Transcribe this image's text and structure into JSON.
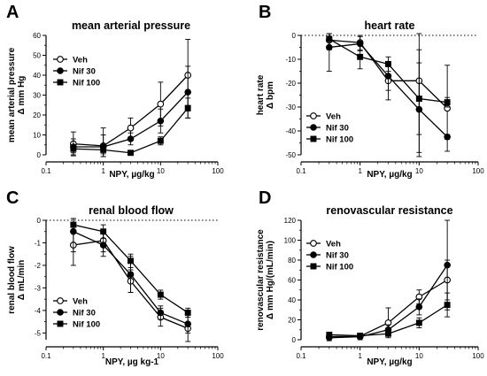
{
  "chart_data": [
    {
      "panel": "A",
      "type": "line",
      "title": "mean arterial pressure",
      "ylabel": [
        "mean arterial pressure",
        "Δ mm Hg"
      ],
      "xlabel": "NPY, µg/kg",
      "xscale": "log",
      "xlim": [
        0.1,
        100
      ],
      "ylim": [
        0,
        60
      ],
      "xticks": [
        0.1,
        1,
        10,
        100
      ],
      "xticklabels": [
        "0.1",
        "1",
        "10",
        "100"
      ],
      "yticks": [
        0,
        10,
        20,
        30,
        40,
        50,
        60
      ],
      "zero_line": false,
      "legend_position": "upper-left",
      "x": [
        0.3,
        1,
        3,
        10,
        30
      ],
      "series": [
        {
          "name": "Veh",
          "marker": "open-circle",
          "values": [
            5.5,
            4.5,
            13.5,
            25.5,
            40
          ],
          "err": [
            6,
            9,
            5,
            11,
            18
          ]
        },
        {
          "name": "Nif 30",
          "marker": "filled-circle",
          "values": [
            4,
            4,
            8,
            17,
            31.5
          ],
          "err": [
            4,
            6,
            3,
            6,
            13
          ]
        },
        {
          "name": "Nif 100",
          "marker": "filled-square",
          "values": [
            3,
            2.5,
            1,
            7,
            23.5
          ],
          "err": [
            2,
            2,
            1,
            2,
            5
          ]
        }
      ]
    },
    {
      "panel": "B",
      "type": "line",
      "title": "heart rate",
      "ylabel": [
        "heart rate",
        "Δ bpm"
      ],
      "xlabel": "NPY, µg/kg",
      "xscale": "log",
      "xlim": [
        0.1,
        100
      ],
      "ylim": [
        -50,
        0
      ],
      "xticks": [
        0.1,
        1,
        10,
        100
      ],
      "xticklabels": [
        "0.1",
        "1",
        "10",
        "100"
      ],
      "yticks": [
        -50,
        -40,
        -30,
        -20,
        -10,
        0
      ],
      "zero_line": true,
      "legend_position": "lower-left",
      "x": [
        0.3,
        1,
        3,
        10,
        30
      ],
      "series": [
        {
          "name": "Veh",
          "marker": "open-circle",
          "values": [
            -2,
            -3,
            -19,
            -19,
            -30.5
          ],
          "err": [
            4,
            3,
            8,
            30,
            18
          ]
        },
        {
          "name": "Nif 30",
          "marker": "filled-circle",
          "values": [
            -5,
            -3.5,
            -17,
            -31,
            -42.5
          ],
          "err": [
            10,
            3,
            6,
            25,
            1
          ]
        },
        {
          "name": "Nif 100",
          "marker": "filled-square",
          "values": [
            -1.5,
            -9,
            -12,
            -26.5,
            -28
          ],
          "err": [
            3,
            5,
            3,
            15,
            2
          ]
        }
      ]
    },
    {
      "panel": "C",
      "type": "line",
      "title": "renal blood flow",
      "ylabel": [
        "renal blood flow",
        "Δ mL/min"
      ],
      "xlabel": "NPY, µg kg-1",
      "xscale": "log",
      "xlim": [
        0.1,
        100
      ],
      "ylim": [
        -5.3,
        0
      ],
      "xticks": [
        0.1,
        1,
        10,
        100
      ],
      "xticklabels": [
        "0.1",
        "1",
        "10",
        "100"
      ],
      "yticks": [
        -5,
        -4,
        -3,
        -2,
        -1,
        0
      ],
      "zero_line": true,
      "legend_position": "lower-left",
      "x": [
        0.3,
        1,
        3,
        10,
        30
      ],
      "series": [
        {
          "name": "Veh",
          "marker": "open-circle",
          "values": [
            -1.1,
            -0.9,
            -2.7,
            -4.3,
            -4.8
          ],
          "err": [
            0.9,
            0.5,
            0.5,
            0.4,
            0.6
          ]
        },
        {
          "name": "Nif 30",
          "marker": "filled-circle",
          "values": [
            -0.5,
            -1.1,
            -2.4,
            -4.1,
            -4.6
          ],
          "err": [
            0.9,
            0.5,
            0.8,
            0.3,
            0.4
          ]
        },
        {
          "name": "Nif 100",
          "marker": "filled-square",
          "values": [
            -0.2,
            -0.5,
            -1.8,
            -3.3,
            -4.1
          ],
          "err": [
            0.3,
            0.3,
            0.3,
            0.2,
            0.2
          ]
        }
      ]
    },
    {
      "panel": "D",
      "type": "line",
      "title": "renovascular resistance",
      "ylabel": [
        "renovascular resistance",
        "Δ mm Hg/(mL/min)"
      ],
      "xlabel": "NPY, µg/kg",
      "xscale": "log",
      "xlim": [
        0.1,
        100
      ],
      "ylim": [
        0,
        120
      ],
      "xticks": [
        0.1,
        1,
        10,
        100
      ],
      "xticklabels": [
        "0.1",
        "1",
        "10",
        "100"
      ],
      "yticks": [
        0,
        20,
        40,
        60,
        80,
        100,
        120
      ],
      "zero_line": false,
      "legend_position": "upper-left",
      "x": [
        0.3,
        1,
        3,
        10,
        30
      ],
      "series": [
        {
          "name": "Veh",
          "marker": "open-circle",
          "values": [
            3,
            3.5,
            17,
            43,
            60
          ],
          "err": [
            2,
            2,
            15,
            7,
            20
          ]
        },
        {
          "name": "Nif 30",
          "marker": "filled-circle",
          "values": [
            2,
            3,
            10,
            33,
            75
          ],
          "err": [
            3,
            3,
            5,
            8,
            45
          ]
        },
        {
          "name": "Nif 100",
          "marker": "filled-square",
          "values": [
            5,
            4,
            6,
            17,
            35
          ],
          "err": [
            2,
            2,
            2,
            5,
            12
          ]
        }
      ]
    }
  ]
}
